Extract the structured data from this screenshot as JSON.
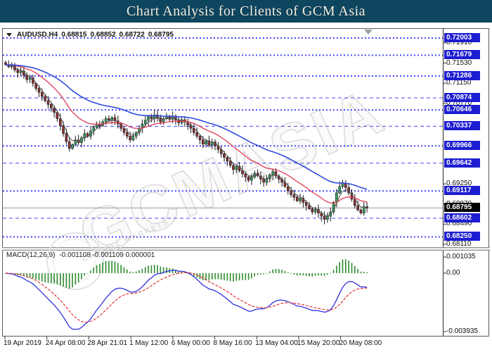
{
  "title_bar": {
    "title": "Chart Analysis for Clients of GCM Asia"
  },
  "chart_header": {
    "symbol": "AUDUSD,H4",
    "open": "0.68815",
    "high": "0.68852",
    "low": "0.68722",
    "close": "0.68795"
  },
  "watermark": {
    "main": "GCMASIA",
    "sub": "CAPITAL MARKETS"
  },
  "price_axis": {
    "plain_ticks": [
      {
        "label": "0.71910",
        "value": 0.7191
      },
      {
        "label": "0.71530",
        "value": 0.7153
      },
      {
        "label": "0.71150",
        "value": 0.7115
      },
      {
        "label": "0.70770",
        "value": 0.7077
      },
      {
        "label": "0.69250",
        "value": 0.6925
      },
      {
        "label": "0.68870",
        "value": 0.6887
      },
      {
        "label": "0.68490",
        "value": 0.6849
      },
      {
        "label": "0.68110",
        "value": 0.6811
      }
    ],
    "current": {
      "label": "0.68795",
      "value": 0.68795
    }
  },
  "levels": [
    {
      "label": "0.72003",
      "value": 0.72003,
      "weight": "bold"
    },
    {
      "label": "0.71679",
      "value": 0.71679,
      "weight": "bold"
    },
    {
      "label": "0.71286",
      "value": 0.71286,
      "weight": "bold"
    },
    {
      "label": "0.70874",
      "value": 0.70874,
      "weight": "thin"
    },
    {
      "label": "0.70646",
      "value": 0.70646,
      "weight": "bold"
    },
    {
      "label": "0.70337",
      "value": 0.70337,
      "weight": "thin"
    },
    {
      "label": "0.69966",
      "value": 0.69966,
      "weight": "bold"
    },
    {
      "label": "0.69642",
      "value": 0.69642,
      "weight": "thin"
    },
    {
      "label": "0.69117",
      "value": 0.69117,
      "weight": "bold"
    },
    {
      "label": "0.68602",
      "value": 0.68602,
      "weight": "thin"
    },
    {
      "label": "0.68250",
      "value": 0.6825,
      "weight": "bold"
    }
  ],
  "time_axis": {
    "labels": [
      "19 Apr 2019",
      "24 Apr 08:00",
      "28 Apr 21:01",
      "1 May 12:00",
      "6 May 00:00",
      "8 May 16:00",
      "13 May 04:00",
      "15 May 20:00",
      "20 May 08:00"
    ]
  },
  "macd_panel": {
    "name": "MACD(12,26,9)",
    "values": "-0.001108 -0.001109 0.000001",
    "axis_ticks": [
      {
        "label": "0.001035",
        "value": 0.001035
      },
      {
        "label": "0.00",
        "value": 0
      },
      {
        "label": "-0.003935",
        "value": -0.003935
      }
    ]
  },
  "colors": {
    "title_bg": "#0e4660",
    "title_fg": "#f2efe2",
    "level_line": "#3434ff",
    "level_box_bg": "#1c1cd2",
    "current_box_bg": "#000000",
    "current_line": "#9a9a9a",
    "bull": "#35a15d",
    "bear": "#8b3131",
    "wick": "#1a1a1a",
    "ma_fast": "#555555",
    "ma_mid": "#e23b55",
    "ma_slow": "#2f4bdf",
    "macd_line": "#2323dd",
    "macd_signal": "#e03333",
    "macd_hist": "#2e8b2e"
  },
  "chart_data": {
    "type": "candlestick",
    "symbol": "AUDUSD",
    "timeframe": "H4",
    "title": "AUDUSD,H4",
    "ohlc_current": {
      "open": 0.68815,
      "high": 0.68852,
      "low": 0.68722,
      "close": 0.68795
    },
    "x_labels": [
      "19 Apr 2019",
      "24 Apr 08:00",
      "28 Apr 21:01",
      "1 May 12:00",
      "6 May 00:00",
      "8 May 16:00",
      "13 May 04:00",
      "15 May 20:00",
      "20 May 08:00"
    ],
    "price_range": [
      0.6811,
      0.72003
    ],
    "levels": [
      0.72003,
      0.71679,
      0.71286,
      0.70874,
      0.70646,
      0.70337,
      0.69966,
      0.69642,
      0.69117,
      0.68602,
      0.6825
    ],
    "current_price": 0.68795,
    "closes": [
      0.715,
      0.7146,
      0.7148,
      0.714,
      0.7135,
      0.7138,
      0.713,
      0.7122,
      0.7125,
      0.7115,
      0.7105,
      0.7098,
      0.709,
      0.7082,
      0.7075,
      0.7068,
      0.706,
      0.7048,
      0.7035,
      0.702,
      0.7005,
      0.6992,
      0.6999,
      0.7008,
      0.7003,
      0.7012,
      0.702,
      0.7015,
      0.7025,
      0.7032,
      0.7038,
      0.7035,
      0.7042,
      0.7048,
      0.7045,
      0.705,
      0.7044,
      0.7038,
      0.703,
      0.7022,
      0.7015,
      0.7008,
      0.7015,
      0.7022,
      0.703,
      0.7038,
      0.7045,
      0.7052,
      0.7048,
      0.7055,
      0.705,
      0.7042,
      0.7048,
      0.7053,
      0.7047,
      0.7052,
      0.7046,
      0.704,
      0.7046,
      0.7042,
      0.7036,
      0.703,
      0.7022,
      0.7015,
      0.7008,
      0.7,
      0.7006,
      0.6998,
      0.7004,
      0.6997,
      0.699,
      0.6982,
      0.6975,
      0.6968,
      0.696,
      0.6952,
      0.6958,
      0.695,
      0.6944,
      0.6938,
      0.6932,
      0.6938,
      0.6945,
      0.694,
      0.6934,
      0.6928,
      0.6935,
      0.6942,
      0.6948,
      0.694,
      0.6934,
      0.6928,
      0.692,
      0.6912,
      0.6905,
      0.69,
      0.6893,
      0.6898,
      0.689,
      0.6884,
      0.6878,
      0.6872,
      0.6877,
      0.687,
      0.6864,
      0.6858,
      0.6864,
      0.6872,
      0.689,
      0.6908,
      0.692,
      0.6926,
      0.6918,
      0.6908,
      0.6896,
      0.6884,
      0.6876,
      0.687,
      0.6882,
      0.68795
    ],
    "indicator": {
      "name": "MACD",
      "fast": 12,
      "slow": 26,
      "signal": 9,
      "current_values": [
        -0.001108,
        -0.001109,
        1e-06
      ],
      "range": [
        -0.003935,
        0.001035
      ]
    }
  }
}
